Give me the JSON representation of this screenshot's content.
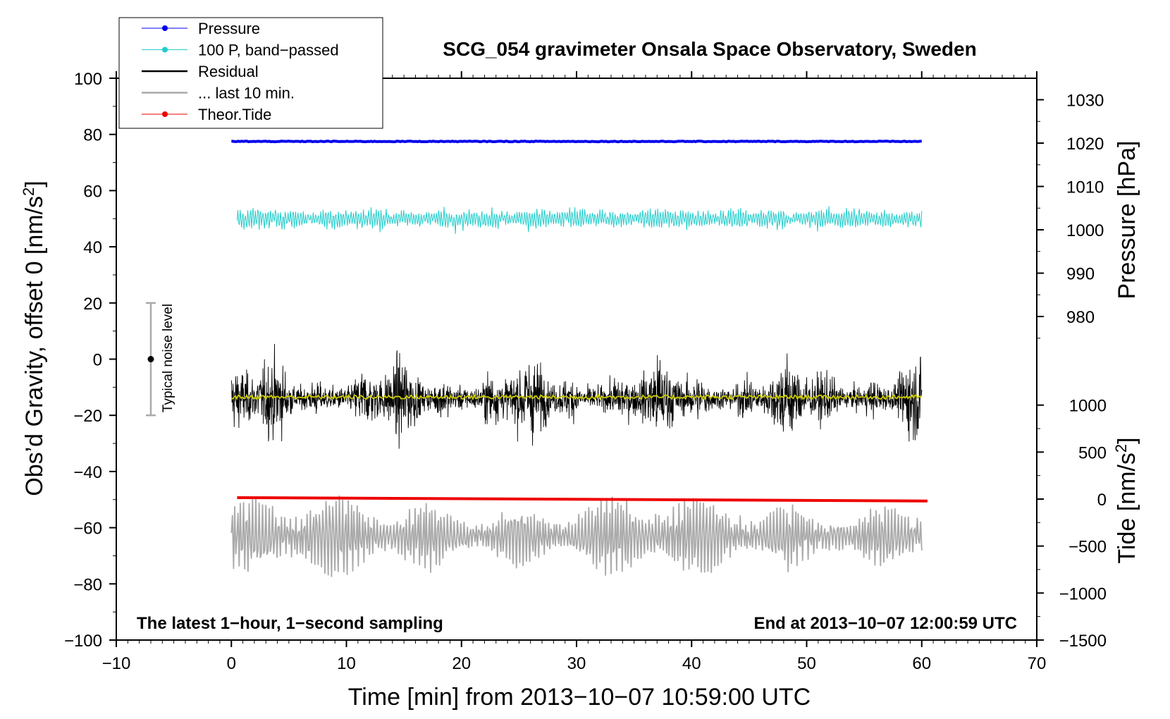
{
  "chart_data": {
    "type": "line",
    "title": "SCG_054 gravimeter Onsala Space Observatory, Sweden",
    "xlabel": "Time [min] from 2013−10−07 10:59:00 UTC",
    "ylabel_left": "Obs’d Gravity, offset 0 [nm/s",
    "ylabel_left_sup": "2",
    "ylabel_left_end": "]",
    "ylabel_right_pressure": "Pressure [hPa]",
    "ylabel_right_tide": "Tide [nm/s",
    "ylabel_right_tide_sup": "2",
    "ylabel_right_tide_end": "]",
    "annotation_left": "The latest 1−hour, 1−second sampling",
    "annotation_right": "End at 2013−10−07 12:00:59 UTC",
    "noise_label": "Typical noise level",
    "noise_bar": {
      "x": -7,
      "center": 0,
      "low": -20,
      "high": 20
    },
    "xlim": [
      -10,
      70
    ],
    "ylim_left": [
      -100,
      100
    ],
    "x_ticks": [
      "−10",
      "0",
      "10",
      "20",
      "30",
      "40",
      "50",
      "60",
      "70"
    ],
    "x_tick_values": [
      -10,
      0,
      10,
      20,
      30,
      40,
      50,
      60,
      70
    ],
    "y_left_tick_values": [
      -100,
      -80,
      -60,
      -40,
      -20,
      0,
      20,
      40,
      60,
      80,
      100
    ],
    "y_left_ticks": [
      "−100",
      "−80",
      "−60",
      "−40",
      "−20",
      "0",
      "20",
      "40",
      "60",
      "80",
      "100"
    ],
    "pressure_axis": {
      "tick_values": [
        980,
        990,
        1000,
        1010,
        1020,
        1030
      ],
      "ticks": [
        "980",
        "990",
        "1000",
        "1010",
        "1020",
        "1030"
      ]
    },
    "tide_axis": {
      "tick_values": [
        -1500,
        -1000,
        -500,
        0,
        500,
        1000
      ],
      "ticks": [
        "−1500",
        "−1000",
        "−500",
        "0",
        "500",
        "1000"
      ]
    },
    "legend": {
      "placement": "top-left",
      "entries": [
        {
          "label": "Pressure",
          "color": "#0000ee",
          "marker": true
        },
        {
          "label": "100 P, band−passed",
          "color": "#22cccc",
          "marker": true
        },
        {
          "label": "Residual",
          "color": "#000000",
          "marker": false
        },
        {
          "label": "... last 10 min.",
          "color": "#aaaaaa",
          "marker": false
        },
        {
          "label": "Theor.Tide",
          "color": "#ee0000",
          "marker": true
        }
      ]
    },
    "series": [
      {
        "name": "Pressure",
        "color": "#0000ee",
        "x_range": [
          0,
          60
        ],
        "level": 77.5,
        "unit_note": "about 1020 hPa"
      },
      {
        "name": "100 P, band−passed",
        "color": "#22cccc",
        "x_range": [
          0.5,
          60
        ],
        "level": 50,
        "amplitude": 6
      },
      {
        "name": "Residual",
        "color": "#000000",
        "x_range": [
          0,
          60
        ],
        "level": -14,
        "amplitude": 14
      },
      {
        "name": "Residual mean",
        "color": "#cccc00",
        "x_range": [
          0,
          60
        ],
        "level": -13.5,
        "amplitude": 1
      },
      {
        "name": "... last 10 min.",
        "color": "#aaaaaa",
        "x_range": [
          0,
          60
        ],
        "level": -63,
        "amplitude": 12
      },
      {
        "name": "Theor.Tide",
        "color": "#ee0000",
        "x": [
          0.5,
          60.5
        ],
        "y": [
          -49.3,
          -50.5
        ]
      }
    ],
    "grid": false
  }
}
